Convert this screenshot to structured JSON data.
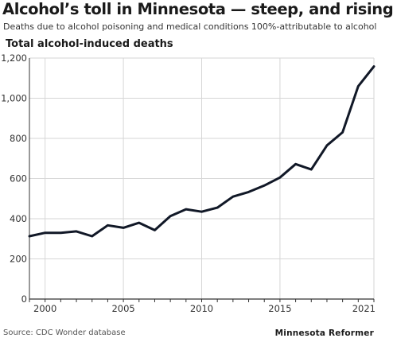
{
  "header": {
    "title": "Alcohol’s toll in Minnesota — steep, and rising",
    "subtitle": "Deaths due to alcohol poisoning and medical conditions 100%-attributable to alcohol"
  },
  "footer": {
    "source": "Source: CDC Wonder database",
    "credit": "Minnesota Reformer"
  },
  "colors": {
    "line": "#111827",
    "grid": "#d6d6d6",
    "axis": "#333333"
  },
  "chart_data": {
    "type": "line",
    "ylabel": "Total alcohol-induced deaths",
    "xlim": [
      1999,
      2021
    ],
    "ylim": [
      0,
      1200
    ],
    "x_ticks": [
      2000,
      2005,
      2010,
      2015,
      2021
    ],
    "x_tick_labels": [
      "2000",
      "2005",
      "2010",
      "2015",
      "2021"
    ],
    "y_ticks": [
      0,
      200,
      400,
      600,
      800,
      1000,
      1200
    ],
    "y_tick_labels": [
      "0",
      "200",
      "400",
      "600",
      "800",
      "1,000",
      "1,200"
    ],
    "grid": "horizontal",
    "x_minor_ticks": "yearly",
    "series": [
      {
        "x": [
          1999,
          2000,
          2001,
          2002,
          2003,
          2004,
          2005,
          2006,
          2007,
          2008,
          2009,
          2010,
          2011,
          2012,
          2013,
          2014,
          2015,
          2016,
          2017,
          2018,
          2019,
          2020,
          2021
        ],
        "values": [
          313,
          330,
          330,
          337,
          313,
          367,
          355,
          380,
          343,
          413,
          447,
          435,
          455,
          510,
          533,
          565,
          605,
          672,
          645,
          765,
          830,
          1060,
          1158
        ]
      }
    ]
  }
}
